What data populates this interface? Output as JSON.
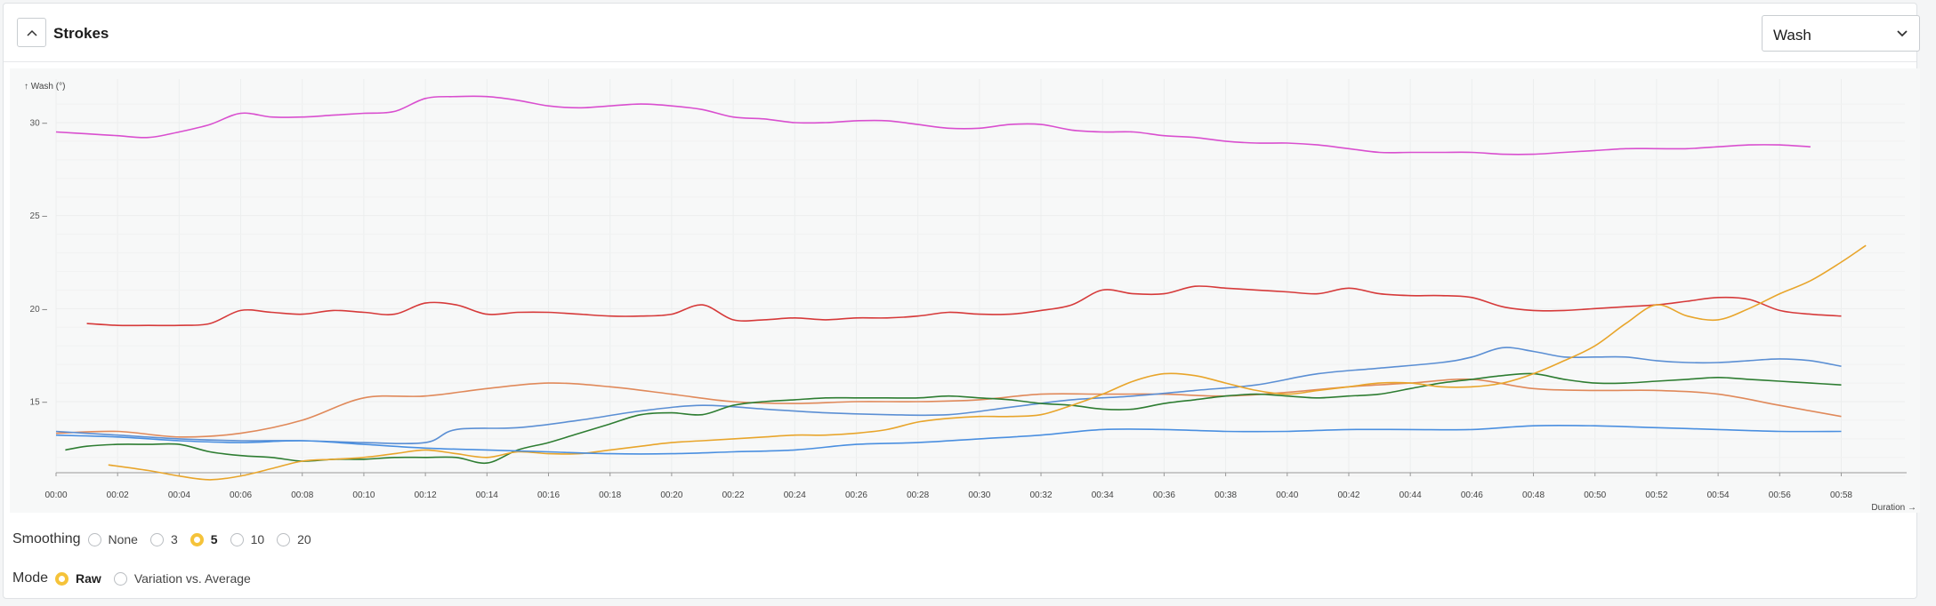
{
  "header": {
    "title": "Strokes",
    "collapse_icon": "chevron-up-icon",
    "metric_select": {
      "value": "Wash",
      "icon": "chevron-down-icon"
    }
  },
  "chart_data": {
    "type": "line",
    "ylabel": "↑ Wash (°)",
    "xlabel": "Duration →",
    "ylim": [
      10,
      32
    ],
    "yticks": [
      15,
      20,
      25,
      30
    ],
    "xticks": [
      "00:00",
      "00:02",
      "00:04",
      "00:06",
      "00:08",
      "00:10",
      "00:12",
      "00:14",
      "00:16",
      "00:18",
      "00:20",
      "00:22",
      "00:24",
      "00:26",
      "00:28",
      "00:30",
      "00:32",
      "00:34",
      "00:36",
      "00:38",
      "00:40",
      "00:42",
      "00:44",
      "00:46",
      "00:48",
      "00:50",
      "00:52",
      "00:54",
      "00:56",
      "00:58"
    ],
    "grid": true,
    "series": [
      {
        "color": "#d94fcf",
        "x": [
          0,
          1,
          2,
          3,
          4,
          5,
          6,
          7,
          8,
          9,
          10,
          11,
          12,
          13,
          14,
          15,
          16,
          17,
          18,
          19,
          20,
          21,
          22,
          23,
          24,
          25,
          26,
          27,
          28,
          29,
          30,
          31,
          32,
          33,
          34,
          35,
          36,
          37,
          38,
          39,
          40,
          41,
          42,
          43,
          44,
          45,
          46,
          47,
          48,
          49,
          50,
          51,
          52,
          53,
          54,
          55,
          56,
          57
        ],
        "y": [
          29.5,
          29.4,
          29.3,
          29.2,
          29.5,
          29.9,
          30.5,
          30.3,
          30.3,
          30.4,
          30.5,
          30.6,
          31.3,
          31.4,
          31.4,
          31.2,
          30.9,
          30.8,
          30.9,
          31.0,
          30.9,
          30.7,
          30.3,
          30.2,
          30.0,
          30.0,
          30.1,
          30.1,
          29.9,
          29.7,
          29.7,
          29.9,
          29.9,
          29.6,
          29.5,
          29.5,
          29.3,
          29.2,
          29.0,
          28.9,
          28.9,
          28.8,
          28.6,
          28.4,
          28.4,
          28.4,
          28.4,
          28.3,
          28.3,
          28.4,
          28.5,
          28.6,
          28.6,
          28.6,
          28.7,
          28.8,
          28.8,
          28.7
        ]
      },
      {
        "color": "#d63a3a",
        "x": [
          1,
          2,
          3,
          4,
          5,
          6,
          7,
          8,
          9,
          10,
          11,
          12,
          13,
          14,
          15,
          16,
          17,
          18,
          19,
          20,
          21,
          22,
          23,
          24,
          25,
          26,
          27,
          28,
          29,
          30,
          31,
          32,
          33,
          34,
          35,
          36,
          37,
          38,
          39,
          40,
          41,
          42,
          43,
          44,
          45,
          46,
          47,
          48,
          49,
          50,
          51,
          52,
          53,
          54,
          55,
          56,
          57,
          58
        ],
        "y": [
          19.2,
          19.1,
          19.1,
          19.1,
          19.2,
          19.9,
          19.8,
          19.7,
          19.9,
          19.8,
          19.7,
          20.3,
          20.2,
          19.7,
          19.8,
          19.8,
          19.7,
          19.6,
          19.6,
          19.7,
          20.2,
          19.4,
          19.4,
          19.5,
          19.4,
          19.5,
          19.5,
          19.6,
          19.8,
          19.7,
          19.7,
          19.9,
          20.2,
          21.0,
          20.8,
          20.8,
          21.2,
          21.1,
          21.0,
          20.9,
          20.8,
          21.1,
          20.8,
          20.7,
          20.7,
          20.6,
          20.1,
          19.9,
          19.9,
          20.0,
          20.1,
          20.2,
          20.4,
          20.6,
          20.5,
          19.9,
          19.7,
          19.6
        ]
      },
      {
        "color": "#e0895a",
        "x": [
          0,
          2,
          4,
          6,
          8,
          10,
          12,
          14,
          16,
          18,
          20,
          22,
          24,
          26,
          28,
          30,
          32,
          34,
          36,
          38,
          40,
          42,
          44,
          46,
          48,
          50,
          52,
          54,
          56,
          58
        ],
        "y": [
          13.3,
          13.4,
          13.1,
          13.3,
          14.0,
          15.2,
          15.3,
          15.7,
          16.0,
          15.8,
          15.4,
          15.0,
          14.9,
          15.0,
          15.0,
          15.1,
          15.4,
          15.4,
          15.4,
          15.3,
          15.5,
          15.8,
          16.0,
          16.2,
          15.7,
          15.6,
          15.6,
          15.4,
          14.8,
          14.2
        ]
      },
      {
        "color": "#5b8fd4",
        "x": [
          0,
          2,
          4,
          6,
          8,
          10,
          12,
          13,
          15,
          17,
          19,
          21,
          23,
          25,
          27,
          29,
          31,
          33,
          35,
          37,
          39,
          41,
          43,
          45,
          46,
          47,
          48,
          49,
          50,
          51,
          52,
          53,
          54,
          55,
          56,
          57,
          58
        ],
        "y": [
          13.4,
          13.2,
          13.0,
          12.9,
          12.9,
          12.8,
          12.8,
          13.5,
          13.6,
          14.0,
          14.5,
          14.8,
          14.6,
          14.4,
          14.3,
          14.3,
          14.7,
          15.1,
          15.3,
          15.6,
          15.9,
          16.5,
          16.8,
          17.1,
          17.4,
          17.9,
          17.7,
          17.4,
          17.4,
          17.4,
          17.2,
          17.1,
          17.1,
          17.2,
          17.3,
          17.2,
          16.9
        ]
      },
      {
        "color": "#2e7d32",
        "x": [
          0.3,
          1,
          2,
          3,
          4,
          5,
          6,
          7,
          8,
          9,
          10,
          11,
          12,
          13,
          14,
          15,
          16,
          17,
          18,
          19,
          20,
          21,
          22,
          23,
          24,
          25,
          26,
          27,
          28,
          29,
          30,
          31,
          32,
          33,
          34,
          35,
          36,
          37,
          38,
          39,
          40,
          41,
          42,
          43,
          44,
          45,
          46,
          47,
          48,
          49,
          50,
          51,
          52,
          53,
          54,
          55,
          56,
          57,
          58
        ],
        "y": [
          12.4,
          12.6,
          12.7,
          12.7,
          12.7,
          12.3,
          12.1,
          12.0,
          11.8,
          11.9,
          11.9,
          12.0,
          12.0,
          12.0,
          11.7,
          12.4,
          12.8,
          13.3,
          13.8,
          14.3,
          14.4,
          14.3,
          14.8,
          15.0,
          15.1,
          15.2,
          15.2,
          15.2,
          15.2,
          15.3,
          15.2,
          15.1,
          14.9,
          14.8,
          14.6,
          14.6,
          14.9,
          15.1,
          15.3,
          15.4,
          15.3,
          15.2,
          15.3,
          15.4,
          15.7,
          16.0,
          16.2,
          16.4,
          16.5,
          16.2,
          16.0,
          16.0,
          16.1,
          16.2,
          16.3,
          16.2,
          16.1,
          16.0,
          15.9
        ]
      },
      {
        "color": "#e8a52b",
        "x": [
          1.7,
          3,
          4,
          5,
          6,
          7,
          8,
          9,
          10,
          11,
          12,
          13,
          14,
          15,
          16,
          17,
          18,
          19,
          20,
          21,
          22,
          23,
          24,
          25,
          26,
          27,
          28,
          29,
          30,
          31,
          32,
          33,
          34,
          35,
          36,
          37,
          38,
          39,
          40,
          41,
          42,
          43,
          44,
          45,
          46,
          47,
          48,
          49,
          50,
          51,
          52,
          53,
          54,
          55,
          56,
          57,
          58,
          58.8
        ],
        "y": [
          11.6,
          11.3,
          11.0,
          10.8,
          11.0,
          11.4,
          11.8,
          11.9,
          12.0,
          12.2,
          12.4,
          12.2,
          12.0,
          12.3,
          12.2,
          12.2,
          12.4,
          12.6,
          12.8,
          12.9,
          13.0,
          13.1,
          13.2,
          13.2,
          13.3,
          13.5,
          13.9,
          14.1,
          14.2,
          14.2,
          14.3,
          14.8,
          15.4,
          16.1,
          16.5,
          16.4,
          16.0,
          15.6,
          15.4,
          15.6,
          15.8,
          16.0,
          16.0,
          15.8,
          15.8,
          16.0,
          16.5,
          17.2,
          18.0,
          19.2,
          20.2,
          19.6,
          19.4,
          20.0,
          20.8,
          21.5,
          22.5,
          23.4
        ]
      },
      {
        "color": "#4a8fe0",
        "x": [
          0,
          2,
          4,
          6,
          8,
          10,
          12,
          14,
          16,
          18,
          20,
          22,
          24,
          26,
          28,
          30,
          32,
          34,
          36,
          38,
          40,
          42,
          44,
          46,
          48,
          50,
          52,
          54,
          56,
          58
        ],
        "y": [
          13.2,
          13.1,
          12.9,
          12.8,
          12.9,
          12.7,
          12.5,
          12.4,
          12.3,
          12.2,
          12.2,
          12.3,
          12.4,
          12.7,
          12.8,
          13.0,
          13.2,
          13.5,
          13.5,
          13.4,
          13.4,
          13.5,
          13.5,
          13.5,
          13.7,
          13.7,
          13.6,
          13.5,
          13.4,
          13.4
        ]
      }
    ]
  },
  "smoothing": {
    "label": "Smoothing",
    "options": [
      "None",
      "3",
      "5",
      "10",
      "20"
    ],
    "selected": "5"
  },
  "mode": {
    "label": "Mode",
    "options": [
      "Raw",
      "Variation vs. Average"
    ],
    "selected": "Raw"
  }
}
